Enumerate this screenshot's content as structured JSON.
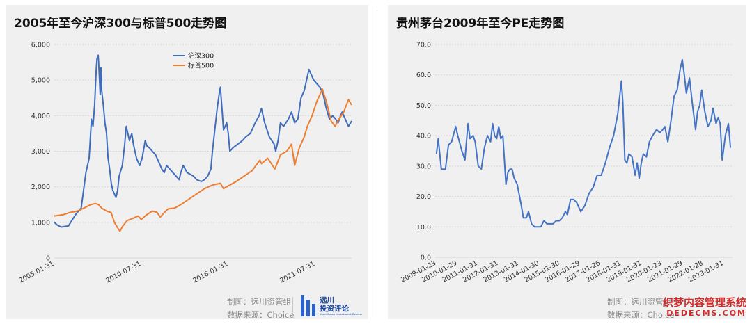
{
  "left_panel": {
    "title": "2005年至今沪深300与标普500走势图",
    "footer_line1": "制图：远川资管组",
    "footer_line2": "数据来源：Choice",
    "logo_line1": "远川",
    "logo_line2": "投资评论",
    "logo_sub": "YuanChuan Investment Review"
  },
  "right_panel": {
    "title": "贵州茅台2009年至今PE走势图",
    "footer_line1": "制图：远川资管组",
    "footer_line2": "数据来源：Choice"
  },
  "watermark": {
    "line1": "织梦内容管理系统",
    "line2": "DEDECMS.COM"
  },
  "colors": {
    "csi300": "#3f6cbb",
    "sp500": "#ed7d31",
    "pe": "#4472c4",
    "grid": "#d6d6d6",
    "axis_text": "#333333"
  },
  "chart_data": [
    {
      "type": "line",
      "title": "2005年至今沪深300与标普500走势图",
      "xlabel": "",
      "ylabel": "",
      "x_range": [
        2005.0,
        2023.8
      ],
      "ylim": [
        0,
        6000
      ],
      "yticks": [
        "0",
        "1,000",
        "2,000",
        "3,000",
        "4,000",
        "5,000",
        "6,000"
      ],
      "ytick_values": [
        0,
        1000,
        2000,
        3000,
        4000,
        5000,
        6000
      ],
      "xticks": [
        "2005-01-31",
        "2010-07-31",
        "2016-01-31",
        "2021-07-31"
      ],
      "xtick_positions": [
        2005.0,
        2010.5,
        2016.0,
        2021.5
      ],
      "grid": true,
      "legend_position": "top-center",
      "series": [
        {
          "name": "沪深300",
          "x": [
            2005.0,
            2005.2,
            2005.45,
            2005.7,
            2005.9,
            2006.1,
            2006.4,
            2006.7,
            2006.85,
            2007.0,
            2007.2,
            2007.35,
            2007.45,
            2007.55,
            2007.65,
            2007.7,
            2007.78,
            2007.85,
            2007.9,
            2007.95,
            2008.0,
            2008.1,
            2008.2,
            2008.3,
            2008.4,
            2008.5,
            2008.6,
            2008.7,
            2008.8,
            2008.9,
            2009.0,
            2009.1,
            2009.3,
            2009.45,
            2009.55,
            2009.65,
            2009.75,
            2009.9,
            2010.0,
            2010.2,
            2010.4,
            2010.55,
            2010.75,
            2010.85,
            2011.0,
            2011.2,
            2011.4,
            2011.6,
            2011.8,
            2011.95,
            2012.1,
            2012.3,
            2012.5,
            2012.7,
            2012.9,
            2013.0,
            2013.15,
            2013.4,
            2013.6,
            2013.8,
            2014.0,
            2014.3,
            2014.5,
            2014.7,
            2014.9,
            2015.0,
            2015.15,
            2015.3,
            2015.42,
            2015.5,
            2015.6,
            2015.7,
            2015.9,
            2016.0,
            2016.1,
            2016.3,
            2016.6,
            2016.9,
            2017.1,
            2017.4,
            2017.7,
            2017.95,
            2018.1,
            2018.3,
            2018.6,
            2018.9,
            2019.0,
            2019.15,
            2019.3,
            2019.5,
            2019.8,
            2020.0,
            2020.2,
            2020.4,
            2020.6,
            2020.8,
            2020.95,
            2021.1,
            2021.2,
            2021.4,
            2021.6,
            2021.8,
            2022.0,
            2022.2,
            2022.4,
            2022.6,
            2022.8,
            2022.95,
            2023.1,
            2023.2,
            2023.4,
            2023.6,
            2023.8
          ],
          "values": [
            1000,
            920,
            870,
            890,
            900,
            1050,
            1250,
            1400,
            1900,
            2400,
            2800,
            3900,
            3700,
            4300,
            5300,
            5600,
            5700,
            5100,
            4600,
            5350,
            4700,
            4300,
            3800,
            3500,
            2800,
            2500,
            2100,
            1900,
            1800,
            1700,
            1900,
            2300,
            2600,
            3200,
            3700,
            3500,
            3300,
            3500,
            3200,
            2800,
            2600,
            2800,
            3300,
            3150,
            3100,
            3000,
            2900,
            2700,
            2500,
            2400,
            2600,
            2500,
            2400,
            2300,
            2200,
            2400,
            2600,
            2400,
            2350,
            2300,
            2200,
            2150,
            2200,
            2300,
            2500,
            3000,
            3600,
            4200,
            4600,
            4800,
            4200,
            3600,
            3800,
            3500,
            3000,
            3100,
            3200,
            3300,
            3400,
            3500,
            3800,
            4000,
            4200,
            3800,
            3400,
            3200,
            3000,
            3300,
            3800,
            3700,
            3900,
            4100,
            3800,
            3900,
            4500,
            4700,
            5000,
            5300,
            5200,
            5000,
            4900,
            4800,
            4600,
            4200,
            3900,
            4000,
            3900,
            3800,
            4000,
            4100,
            3900,
            3700,
            3850
          ]
        },
        {
          "name": "标普500",
          "x": [
            2005.0,
            2005.3,
            2005.6,
            2006.0,
            2006.3,
            2006.6,
            2007.0,
            2007.3,
            2007.6,
            2007.8,
            2008.0,
            2008.3,
            2008.6,
            2008.8,
            2009.0,
            2009.15,
            2009.3,
            2009.6,
            2010.0,
            2010.3,
            2010.5,
            2010.8,
            2011.2,
            2011.5,
            2011.7,
            2011.9,
            2012.2,
            2012.6,
            2013.0,
            2013.5,
            2014.0,
            2014.5,
            2015.0,
            2015.5,
            2015.7,
            2016.1,
            2016.5,
            2017.0,
            2017.5,
            2018.0,
            2018.1,
            2018.5,
            2018.95,
            2019.3,
            2019.7,
            2020.0,
            2020.2,
            2020.5,
            2020.8,
            2021.0,
            2021.3,
            2021.6,
            2021.95,
            2022.2,
            2022.5,
            2022.75,
            2023.0,
            2023.3,
            2023.6,
            2023.8
          ],
          "values": [
            1180,
            1200,
            1220,
            1280,
            1300,
            1340,
            1430,
            1500,
            1530,
            1500,
            1400,
            1320,
            1270,
            1000,
            850,
            750,
            880,
            1050,
            1120,
            1180,
            1080,
            1200,
            1320,
            1280,
            1150,
            1250,
            1380,
            1400,
            1500,
            1650,
            1800,
            1950,
            2050,
            2100,
            1950,
            2050,
            2150,
            2300,
            2450,
            2750,
            2650,
            2800,
            2500,
            2900,
            3000,
            3200,
            2600,
            3100,
            3400,
            3700,
            4000,
            4400,
            4750,
            4400,
            3850,
            3700,
            3900,
            4100,
            4450,
            4300
          ]
        }
      ]
    },
    {
      "type": "line",
      "title": "贵州茅台2009年至今PE走势图",
      "xlabel": "",
      "ylabel": "",
      "x_range": [
        2009.0,
        2023.5
      ],
      "ylim": [
        0,
        70
      ],
      "yticks": [
        "0.0",
        "10.0",
        "20.0",
        "30.0",
        "40.0",
        "50.0",
        "60.0",
        "70.0"
      ],
      "ytick_values": [
        0,
        10,
        20,
        30,
        40,
        50,
        60,
        70
      ],
      "xticks": [
        "2009-01-23",
        "2010-01-29",
        "2011-01-31",
        "2012-01-31",
        "2013-01-31",
        "2014-01-30",
        "2015-01-30",
        "2016-01-29",
        "2017-01-26",
        "2018-01-31",
        "2019-01-31",
        "2020-01-23",
        "2021-01-29",
        "2022-01-28",
        "2023-01-31"
      ],
      "xtick_positions": [
        2009.06,
        2010.08,
        2011.08,
        2012.08,
        2013.08,
        2014.08,
        2015.08,
        2016.08,
        2017.07,
        2018.08,
        2019.08,
        2020.06,
        2021.08,
        2022.08,
        2023.08
      ],
      "grid": true,
      "series": [
        {
          "name": "PE",
          "x": [
            2009.06,
            2009.15,
            2009.3,
            2009.5,
            2009.65,
            2009.8,
            2010.0,
            2010.1,
            2010.3,
            2010.45,
            2010.6,
            2010.7,
            2010.85,
            2010.95,
            2011.1,
            2011.25,
            2011.4,
            2011.55,
            2011.7,
            2011.8,
            2011.9,
            2012.0,
            2012.1,
            2012.2,
            2012.3,
            2012.45,
            2012.55,
            2012.65,
            2012.75,
            2012.85,
            2013.0,
            2013.2,
            2013.3,
            2013.45,
            2013.55,
            2013.7,
            2013.85,
            2014.0,
            2014.15,
            2014.3,
            2014.45,
            2014.6,
            2014.75,
            2014.9,
            2015.05,
            2015.2,
            2015.35,
            2015.45,
            2015.6,
            2015.75,
            2015.9,
            2016.1,
            2016.3,
            2016.5,
            2016.7,
            2016.9,
            2017.1,
            2017.3,
            2017.5,
            2017.7,
            2017.9,
            2018.0,
            2018.08,
            2018.15,
            2018.25,
            2018.35,
            2018.45,
            2018.6,
            2018.75,
            2018.85,
            2018.95,
            2019.05,
            2019.15,
            2019.3,
            2019.45,
            2019.6,
            2019.8,
            2019.95,
            2020.1,
            2020.2,
            2020.35,
            2020.5,
            2020.65,
            2020.8,
            2020.95,
            2021.05,
            2021.15,
            2021.25,
            2021.4,
            2021.55,
            2021.7,
            2021.8,
            2021.9,
            2022.0,
            2022.15,
            2022.3,
            2022.45,
            2022.55,
            2022.7,
            2022.8,
            2022.9,
            2023.0,
            2023.15,
            2023.3,
            2023.4
          ],
          "values": [
            34,
            39,
            29,
            29,
            37,
            38,
            43,
            40,
            35,
            32,
            44,
            39,
            40,
            38,
            30,
            29,
            36,
            40,
            38,
            44,
            40,
            39,
            43,
            39,
            40,
            24,
            28,
            29,
            29,
            26,
            24,
            17,
            13,
            13,
            15,
            11,
            10,
            10,
            10,
            12,
            11,
            11,
            11,
            12,
            12,
            13,
            15,
            14,
            19,
            19,
            18,
            15,
            17,
            21,
            23,
            27,
            27,
            31,
            36,
            40,
            47,
            53,
            58,
            51,
            32,
            31,
            34,
            33,
            27,
            31,
            26,
            31,
            34,
            33,
            38,
            40,
            42,
            41,
            42,
            43,
            38,
            45,
            53,
            55,
            62,
            65,
            60,
            54,
            59,
            50,
            42,
            48,
            50,
            55,
            48,
            43,
            45,
            49,
            44,
            46,
            44,
            32,
            40,
            44,
            36
          ]
        }
      ]
    }
  ]
}
